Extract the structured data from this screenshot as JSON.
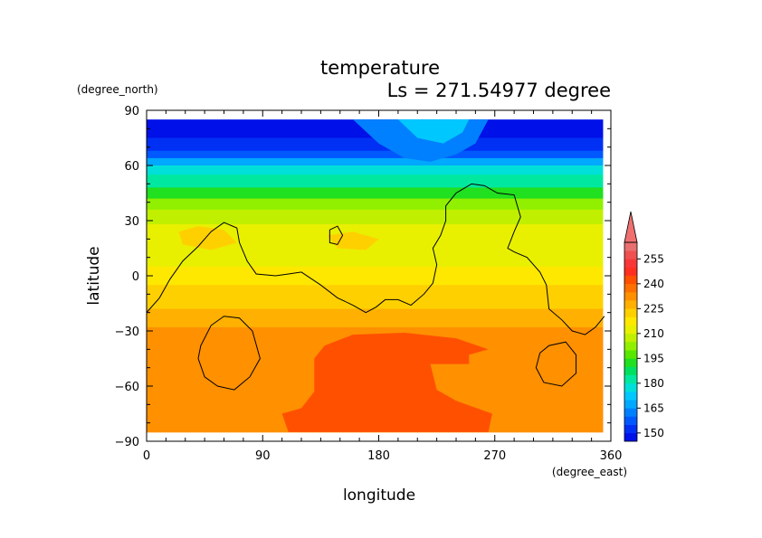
{
  "chart_data": {
    "type": "heatmap",
    "title": "temperature",
    "subtitle": "Ls = 271.54977 degree",
    "xlabel": "longitude",
    "ylabel": "latitude",
    "x_unit": "(degree_east)",
    "y_unit": "(degree_north)",
    "xlim": [
      0,
      360
    ],
    "ylim": [
      -90,
      90
    ],
    "x_ticks": [
      "0",
      "90",
      "180",
      "270",
      "360"
    ],
    "y_ticks": [
      "90",
      "60",
      "30",
      "0",
      "−30",
      "−60",
      "−90"
    ],
    "data_extent": {
      "x": [
        0,
        354
      ],
      "y": [
        -85,
        85
      ]
    },
    "colorbar": {
      "labels": [
        "255",
        "240",
        "225",
        "210",
        "195",
        "180",
        "165",
        "150"
      ],
      "levels": [
        145,
        150,
        155,
        160,
        165,
        170,
        175,
        180,
        185,
        190,
        195,
        200,
        205,
        210,
        215,
        220,
        225,
        230,
        235,
        240,
        245,
        250,
        255,
        260
      ],
      "colors": [
        "#0010e8",
        "#0030f4",
        "#0058ff",
        "#0080ff",
        "#00a8ff",
        "#00c8ff",
        "#00e0d8",
        "#00e8a0",
        "#00e060",
        "#20e020",
        "#58e800",
        "#90f000",
        "#c0f000",
        "#e8f000",
        "#ffe800",
        "#ffd000",
        "#ffb000",
        "#ff9000",
        "#ff7000",
        "#ff5000",
        "#ff3020",
        "#f83838",
        "#f05050",
        "#e87070"
      ],
      "overflow_color": "#f07070"
    },
    "bands": [
      {
        "lat_top": 85,
        "lat_bottom": 75,
        "value": 145
      },
      {
        "lat_top": 75,
        "lat_bottom": 68,
        "value": 150
      },
      {
        "lat_top": 68,
        "lat_bottom": 64,
        "value": 155
      },
      {
        "lat_top": 64,
        "lat_bottom": 60,
        "value": 165
      },
      {
        "lat_top": 60,
        "lat_bottom": 55,
        "value": 175
      },
      {
        "lat_top": 55,
        "lat_bottom": 48,
        "value": 180
      },
      {
        "lat_top": 48,
        "lat_bottom": 42,
        "value": 190
      },
      {
        "lat_top": 42,
        "lat_bottom": 36,
        "value": 200
      },
      {
        "lat_top": 36,
        "lat_bottom": 28,
        "value": 205
      },
      {
        "lat_top": 28,
        "lat_bottom": 18,
        "value": 210
      },
      {
        "lat_top": 18,
        "lat_bottom": 5,
        "value": 212
      },
      {
        "lat_top": 5,
        "lat_bottom": -5,
        "value": 218
      },
      {
        "lat_top": -5,
        "lat_bottom": -18,
        "value": 222
      },
      {
        "lat_top": -18,
        "lat_bottom": -28,
        "value": 228
      },
      {
        "lat_top": -28,
        "lat_bottom": -60,
        "value": 230
      },
      {
        "lat_top": -60,
        "lat_bottom": -85,
        "value": 234
      }
    ],
    "regions": [
      {
        "name": "north-polar-cap-bulge",
        "value": 160,
        "poly": [
          [
            160,
            85
          ],
          [
            180,
            72
          ],
          [
            200,
            64
          ],
          [
            220,
            62
          ],
          [
            240,
            66
          ],
          [
            255,
            72
          ],
          [
            265,
            85
          ]
        ]
      },
      {
        "name": "arctic-bright-spot",
        "value": 170,
        "poly": [
          [
            195,
            85
          ],
          [
            210,
            75
          ],
          [
            230,
            72
          ],
          [
            245,
            78
          ],
          [
            250,
            85
          ]
        ]
      },
      {
        "name": "northern-yellow-patch-west",
        "value": 222,
        "poly": [
          [
            25,
            24
          ],
          [
            40,
            27
          ],
          [
            60,
            25
          ],
          [
            70,
            18
          ],
          [
            50,
            14
          ],
          [
            28,
            17
          ]
        ]
      },
      {
        "name": "northern-yellow-patch-mid",
        "value": 222,
        "poly": [
          [
            140,
            22
          ],
          [
            160,
            24
          ],
          [
            180,
            20
          ],
          [
            170,
            14
          ],
          [
            148,
            15
          ]
        ]
      },
      {
        "name": "southern-warm-region",
        "value": 240,
        "poly": [
          [
            110,
            -85
          ],
          [
            105,
            -75
          ],
          [
            120,
            -72
          ],
          [
            130,
            -63
          ],
          [
            130,
            -45
          ],
          [
            138,
            -38
          ],
          [
            160,
            -32
          ],
          [
            200,
            -31
          ],
          [
            230,
            -36
          ],
          [
            250,
            -40
          ],
          [
            250,
            -48
          ],
          [
            220,
            -48
          ],
          [
            225,
            -62
          ],
          [
            240,
            -68
          ],
          [
            268,
            -75
          ],
          [
            265,
            -85
          ]
        ]
      },
      {
        "name": "southern-warm-tongue",
        "value": 240,
        "poly": [
          [
            200,
            -31
          ],
          [
            240,
            -34
          ],
          [
            265,
            -40
          ],
          [
            250,
            -43
          ]
        ]
      }
    ],
    "contours": [
      {
        "name": "contour-main",
        "points": [
          [
            0,
            -20
          ],
          [
            10,
            -12
          ],
          [
            18,
            -2
          ],
          [
            28,
            8
          ],
          [
            40,
            16
          ],
          [
            50,
            24
          ],
          [
            60,
            29
          ],
          [
            70,
            26
          ],
          [
            72,
            18
          ],
          [
            78,
            8
          ],
          [
            85,
            1
          ],
          [
            100,
            0
          ],
          [
            110,
            1
          ],
          [
            120,
            2
          ],
          [
            135,
            -5
          ],
          [
            148,
            -12
          ],
          [
            160,
            -16
          ],
          [
            170,
            -20
          ],
          [
            178,
            -17
          ],
          [
            185,
            -13
          ],
          [
            195,
            -13
          ],
          [
            205,
            -16
          ],
          [
            215,
            -10
          ],
          [
            222,
            -4
          ],
          [
            225,
            6
          ],
          [
            222,
            15
          ],
          [
            228,
            22
          ],
          [
            232,
            30
          ],
          [
            232,
            38
          ],
          [
            240,
            45
          ],
          [
            252,
            50
          ],
          [
            262,
            49
          ],
          [
            272,
            45
          ],
          [
            285,
            44
          ],
          [
            290,
            32
          ],
          [
            285,
            24
          ],
          [
            280,
            15
          ],
          [
            285,
            13
          ],
          [
            295,
            10
          ],
          [
            305,
            2
          ],
          [
            310,
            -5
          ],
          [
            312,
            -18
          ],
          [
            322,
            -24
          ],
          [
            330,
            -30
          ],
          [
            340,
            -32
          ],
          [
            348,
            -28
          ],
          [
            355,
            -22
          ]
        ]
      },
      {
        "name": "contour-west-loop",
        "points": [
          [
            42,
            -38
          ],
          [
            50,
            -27
          ],
          [
            60,
            -22
          ],
          [
            72,
            -23
          ],
          [
            82,
            -30
          ],
          [
            88,
            -45
          ],
          [
            80,
            -55
          ],
          [
            68,
            -62
          ],
          [
            55,
            -60
          ],
          [
            45,
            -55
          ],
          [
            40,
            -45
          ],
          [
            42,
            -38
          ]
        ]
      },
      {
        "name": "contour-southeast-loop",
        "points": [
          [
            305,
            -42
          ],
          [
            312,
            -38
          ],
          [
            325,
            -36
          ],
          [
            333,
            -43
          ],
          [
            333,
            -53
          ],
          [
            322,
            -60
          ],
          [
            308,
            -58
          ],
          [
            302,
            -50
          ],
          [
            305,
            -42
          ]
        ]
      },
      {
        "name": "contour-small-island",
        "points": [
          [
            142,
            25
          ],
          [
            148,
            27
          ],
          [
            152,
            22
          ],
          [
            148,
            17
          ],
          [
            142,
            18
          ],
          [
            142,
            25
          ]
        ]
      }
    ]
  }
}
